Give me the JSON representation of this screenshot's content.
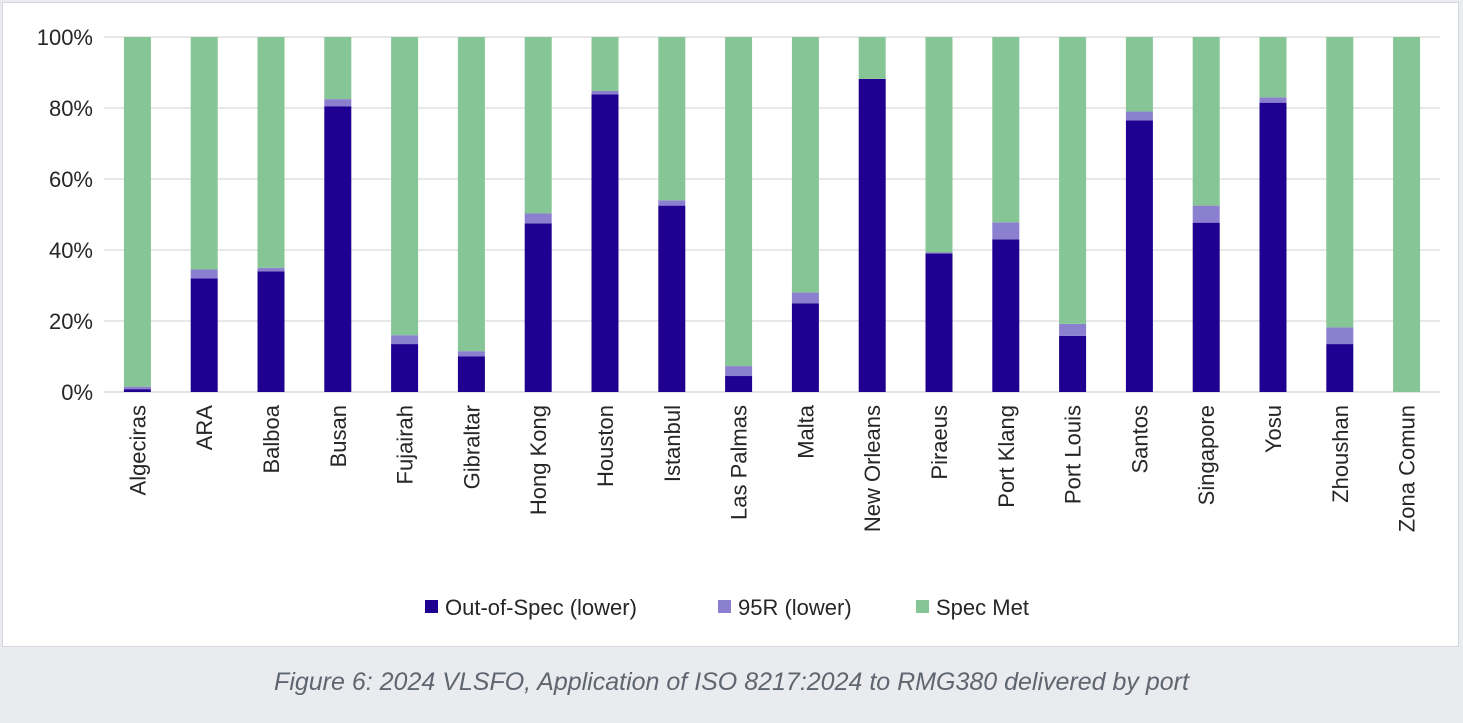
{
  "chart_data": {
    "type": "bar",
    "stacked": true,
    "percent": true,
    "categories": [
      "Algeciras",
      "ARA",
      "Balboa",
      "Busan",
      "Fujairah",
      "Gibraltar",
      "Hong Kong",
      "Houston",
      "Istanbul",
      "Las Palmas",
      "Malta",
      "New Orleans",
      "Piraeus",
      "Port Klang",
      "Port Louis",
      "Santos",
      "Singapore",
      "Yosu",
      "Zhoushan",
      "Zona Comun"
    ],
    "series": [
      {
        "name": "Out-of-Spec (lower)",
        "color": "#1f0090",
        "values": [
          0.8,
          32,
          34,
          80.5,
          13.5,
          10,
          47.5,
          83.8,
          52.5,
          4.5,
          25,
          88.2,
          39,
          43,
          15.8,
          76.5,
          47.7,
          81.5,
          13.5,
          0
        ]
      },
      {
        "name": "95R (lower)",
        "color": "#8b7fcf",
        "values": [
          0.7,
          2.5,
          1,
          2,
          2.5,
          1.5,
          2.8,
          1,
          1.5,
          2.8,
          3,
          0,
          0.3,
          4.8,
          3.4,
          2.5,
          4.8,
          1.5,
          4.7,
          0
        ]
      },
      {
        "name": "Spec Met",
        "color": "#86c595",
        "values": [
          98.5,
          65.5,
          65,
          17.5,
          84,
          88.5,
          49.7,
          15.2,
          46,
          92.7,
          72,
          11.8,
          60.7,
          52.2,
          80.8,
          21,
          47.5,
          17,
          81.8,
          100
        ]
      }
    ],
    "yticks": [
      "0%",
      "20%",
      "40%",
      "60%",
      "80%",
      "100%"
    ],
    "ylim": [
      0,
      100
    ],
    "grid": true,
    "legend_position": "bottom"
  },
  "caption": "Figure 6: 2024 VLSFO, Application of ISO 8217:2024 to RMG380 delivered by port"
}
